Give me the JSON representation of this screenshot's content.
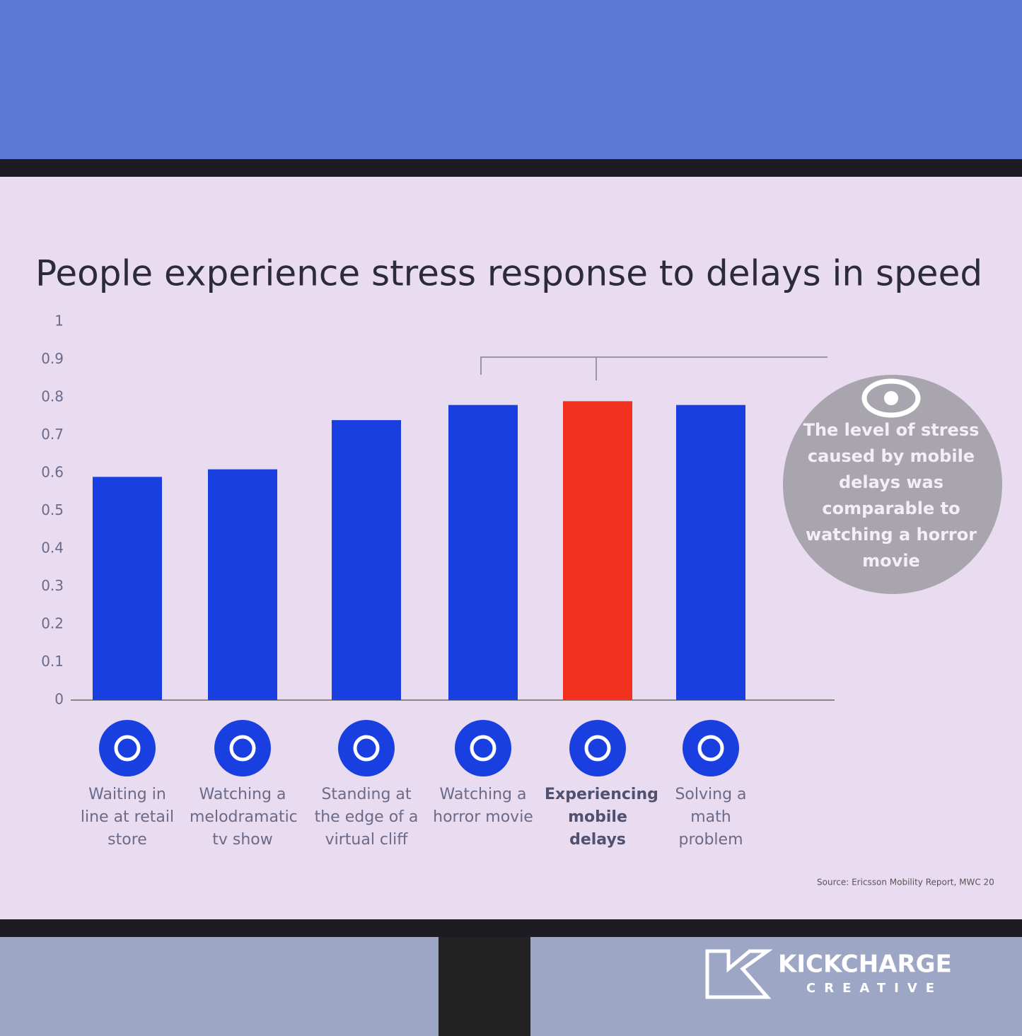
{
  "chart_data": {
    "type": "bar",
    "title": "People experience stress response to delays in speed",
    "categories": [
      "Waiting in line at retail store",
      "Watching a melodramatic tv show",
      "Standing at the edge of a virtual cliff",
      "Watching a horror movie",
      "Experiencing mobile delays",
      "Solving a math problem"
    ],
    "values": [
      0.59,
      0.61,
      0.74,
      0.78,
      0.79,
      0.78
    ],
    "colors": [
      "#1a3fe0",
      "#1a3fe0",
      "#1a3fe0",
      "#1a3fe0",
      "#f2321f",
      "#1a3fe0"
    ],
    "ylim": [
      0,
      1
    ],
    "yticks": [
      0,
      0.1,
      0.2,
      0.3,
      0.4,
      0.5,
      0.6,
      0.7,
      0.8,
      0.9,
      1
    ],
    "grid": false,
    "annotation": "The level of stress caused by mobile delays was comparable to watching a horror movie",
    "source": "Source: Ericsson Mobility Report, MWC 20",
    "watermark_brand": "KICKCHARGE",
    "watermark_sub": "CREATIVE"
  }
}
